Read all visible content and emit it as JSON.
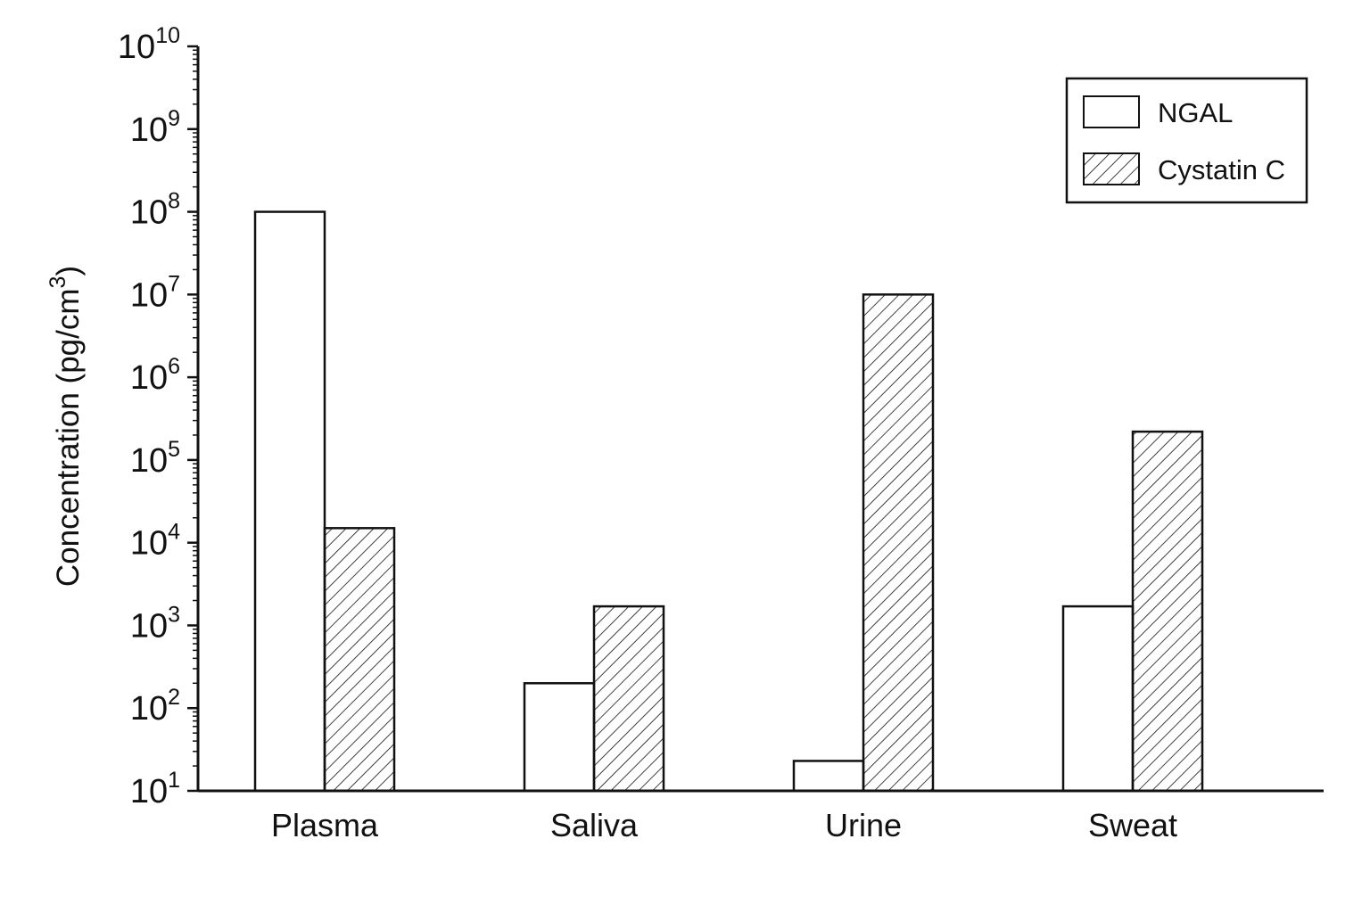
{
  "chart_data": {
    "type": "bar",
    "ylabel": "Concentration (pg/cm",
    "ylabel_sup": "3",
    "ylabel_close": ")",
    "yscale": "log",
    "ylim": [
      10,
      10000000000
    ],
    "ytick_base": "10",
    "yticks_exponents": [
      "1",
      "2",
      "3",
      "4",
      "5",
      "6",
      "7",
      "8",
      "9",
      "10"
    ],
    "categories": [
      "Plasma",
      "Saliva",
      "Urine",
      "Sweat"
    ],
    "series": [
      {
        "name": "NGAL",
        "fill": "none",
        "values": [
          100000000,
          200,
          23,
          1700
        ]
      },
      {
        "name": "Cystatin C",
        "fill": "hatch",
        "values": [
          15000,
          1700,
          10000000,
          220000
        ]
      }
    ],
    "legend": "top-right",
    "grid": false
  }
}
